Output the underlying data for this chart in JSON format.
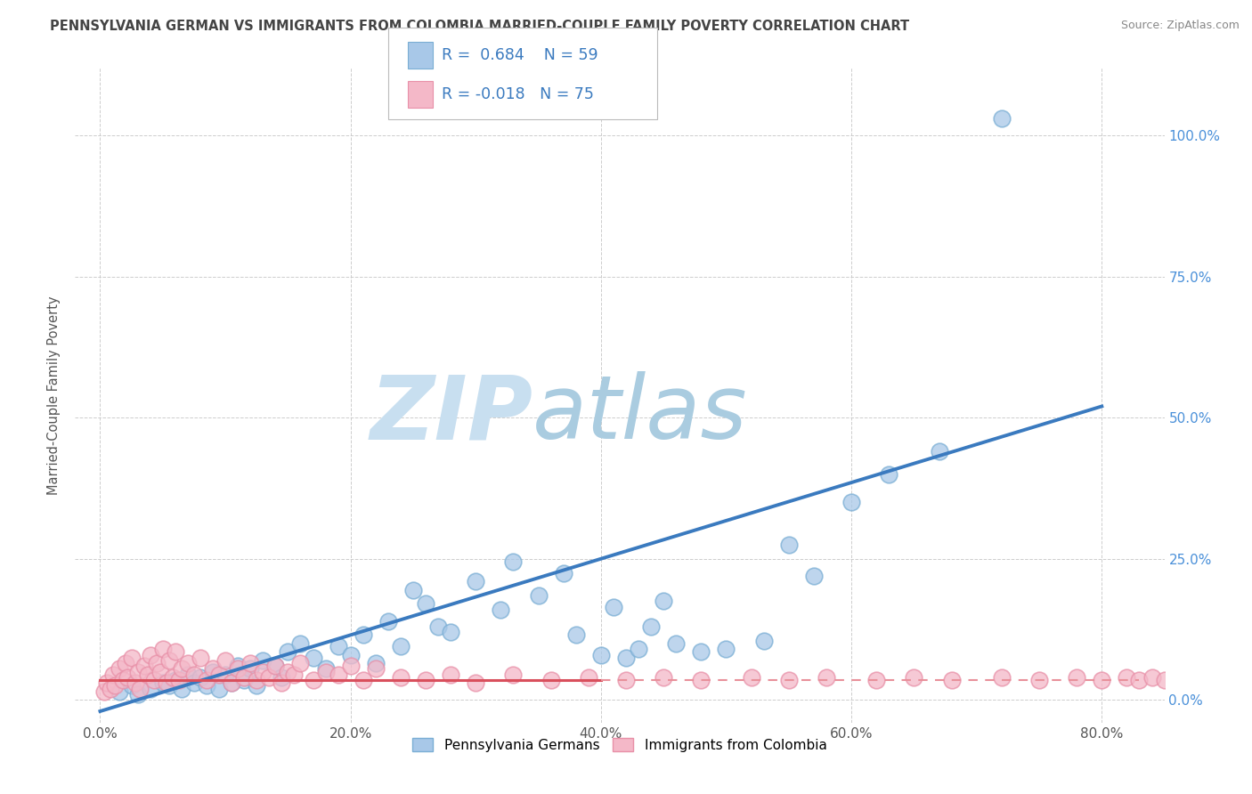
{
  "title": "PENNSYLVANIA GERMAN VS IMMIGRANTS FROM COLOMBIA MARRIED-COUPLE FAMILY POVERTY CORRELATION CHART",
  "source": "Source: ZipAtlas.com",
  "xlabel_vals": [
    0.0,
    20.0,
    40.0,
    60.0,
    80.0
  ],
  "ylabel_vals": [
    0.0,
    25.0,
    50.0,
    75.0,
    100.0
  ],
  "xlim": [
    -2,
    85
  ],
  "ylim": [
    -4,
    112
  ],
  "legend_label1": "Pennsylvania Germans",
  "legend_label2": "Immigrants from Colombia",
  "R1": "0.684",
  "N1": "59",
  "R2": "-0.018",
  "N2": "75",
  "blue_dot_color": "#a8c8e8",
  "blue_dot_edge": "#7aaed4",
  "pink_dot_color": "#f4b8c8",
  "pink_dot_edge": "#e890a8",
  "line_blue": "#3a7abf",
  "line_red_solid": "#d94f5c",
  "line_red_dashed": "#e8909a",
  "title_color": "#444444",
  "watermark_zip_color": "#c8dff0",
  "watermark_atlas_color": "#aacce0",
  "source_color": "#888888",
  "legend_R_color": "#3a7abf",
  "legend_N_color": "#3a7abf",
  "blue_scatter_x": [
    1.5,
    2.5,
    3.0,
    4.0,
    5.0,
    5.5,
    6.0,
    6.5,
    7.0,
    7.5,
    8.0,
    8.5,
    9.0,
    9.5,
    10.0,
    10.5,
    11.0,
    11.5,
    12.0,
    12.5,
    13.0,
    14.0,
    14.5,
    15.0,
    16.0,
    17.0,
    18.0,
    19.0,
    20.0,
    21.0,
    22.0,
    23.0,
    24.0,
    25.0,
    26.0,
    27.0,
    28.0,
    30.0,
    32.0,
    33.0,
    35.0,
    37.0,
    38.0,
    40.0,
    41.0,
    42.0,
    43.0,
    44.0,
    45.0,
    46.0,
    48.0,
    50.0,
    53.0,
    55.0,
    57.0,
    60.0,
    63.0,
    67.0,
    72.0
  ],
  "blue_scatter_y": [
    1.5,
    2.5,
    1.0,
    2.0,
    3.0,
    2.5,
    3.5,
    2.0,
    4.5,
    3.0,
    4.0,
    2.5,
    5.0,
    2.0,
    4.5,
    3.0,
    6.0,
    3.5,
    5.5,
    2.5,
    7.0,
    6.0,
    4.0,
    8.5,
    10.0,
    7.5,
    5.5,
    9.5,
    8.0,
    11.5,
    6.5,
    14.0,
    9.5,
    19.5,
    17.0,
    13.0,
    12.0,
    21.0,
    16.0,
    24.5,
    18.5,
    22.5,
    11.5,
    8.0,
    16.5,
    7.5,
    9.0,
    13.0,
    17.5,
    10.0,
    8.5,
    9.0,
    10.5,
    27.5,
    22.0,
    35.0,
    40.0,
    44.0,
    103.0
  ],
  "pink_scatter_x": [
    0.3,
    0.5,
    0.8,
    1.0,
    1.2,
    1.5,
    1.8,
    2.0,
    2.2,
    2.5,
    2.8,
    3.0,
    3.2,
    3.5,
    3.8,
    4.0,
    4.3,
    4.5,
    4.8,
    5.0,
    5.3,
    5.5,
    5.8,
    6.0,
    6.3,
    6.5,
    7.0,
    7.5,
    8.0,
    8.5,
    9.0,
    9.5,
    10.0,
    10.5,
    11.0,
    11.5,
    12.0,
    12.5,
    13.0,
    13.5,
    14.0,
    14.5,
    15.0,
    15.5,
    16.0,
    17.0,
    18.0,
    19.0,
    20.0,
    21.0,
    22.0,
    24.0,
    26.0,
    28.0,
    30.0,
    33.0,
    36.0,
    39.0,
    42.0,
    45.0,
    48.0,
    52.0,
    55.0,
    58.0,
    62.0,
    65.0,
    68.0,
    72.0,
    75.0,
    78.0,
    80.0,
    82.0,
    83.0,
    84.0,
    85.0
  ],
  "pink_scatter_y": [
    1.5,
    3.0,
    2.0,
    4.5,
    2.5,
    5.5,
    3.5,
    6.5,
    4.0,
    7.5,
    3.0,
    5.0,
    2.0,
    6.0,
    4.5,
    8.0,
    3.5,
    6.5,
    5.0,
    9.0,
    3.0,
    7.0,
    4.0,
    8.5,
    3.5,
    5.5,
    6.5,
    4.5,
    7.5,
    3.5,
    5.5,
    4.5,
    7.0,
    3.0,
    5.5,
    4.0,
    6.5,
    3.5,
    5.0,
    4.0,
    6.0,
    3.0,
    5.0,
    4.5,
    6.5,
    3.5,
    5.0,
    4.5,
    6.0,
    3.5,
    5.5,
    4.0,
    3.5,
    4.5,
    3.0,
    4.5,
    3.5,
    4.0,
    3.5,
    4.0,
    3.5,
    4.0,
    3.5,
    4.0,
    3.5,
    4.0,
    3.5,
    4.0,
    3.5,
    4.0,
    3.5,
    4.0,
    3.5,
    4.0,
    3.5
  ],
  "blue_line_x0": 0.0,
  "blue_line_x1": 80.0,
  "blue_line_y0": -2.0,
  "blue_line_y1": 52.0,
  "red_solid_x0": 0.0,
  "red_solid_x1": 40.0,
  "red_solid_y": 3.5,
  "red_dashed_x0": 40.0,
  "red_dashed_x1": 83.0,
  "red_dashed_y": 3.5
}
